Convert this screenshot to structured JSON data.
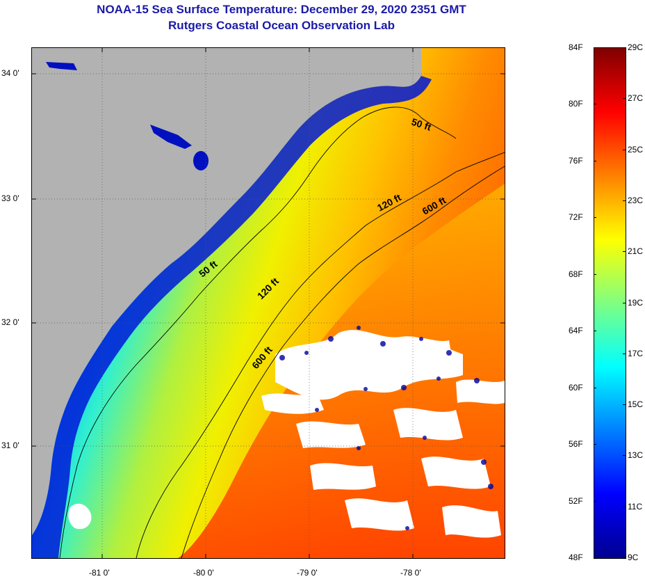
{
  "title": {
    "line1": "NOAA-15 Sea Surface Temperature:  December 29, 2020 2351 GMT",
    "line2": "Rutgers Coastal Ocean Observation Lab"
  },
  "map": {
    "lon_range": [
      -81.65,
      -77.1
    ],
    "lat_range": [
      30.2,
      34.2
    ],
    "lon_ticks": [
      "-81 0'",
      "-80 0'",
      "-79 0'",
      "-78 0'"
    ],
    "lat_ticks": [
      "34 0'",
      "33 0'",
      "32 0'",
      "31 0'"
    ],
    "grid": "dotted",
    "land_color": "#b2b2b2",
    "cloud_color": "#ffffff",
    "contours": [
      {
        "label": "50 ft"
      },
      {
        "label": "120 ft"
      },
      {
        "label": "600 ft"
      },
      {
        "label": "50 ft"
      },
      {
        "label": "120 ft"
      },
      {
        "label": "600 ft"
      }
    ]
  },
  "colorbar": {
    "fahrenheit_labels": [
      "84F",
      "80F",
      "76F",
      "72F",
      "68F",
      "64F",
      "60F",
      "56F",
      "52F",
      "48F"
    ],
    "celsius_labels": [
      "29C",
      "27C",
      "25C",
      "23C",
      "21C",
      "19C",
      "17C",
      "15C",
      "13C",
      "11C",
      "9C"
    ],
    "range_f": [
      48,
      84
    ],
    "range_c": [
      9,
      29
    ],
    "colors": [
      "#00008f",
      "#0000ff",
      "#0080ff",
      "#00ffff",
      "#80ff80",
      "#ffff00",
      "#ff8000",
      "#ff0000",
      "#800000"
    ]
  }
}
